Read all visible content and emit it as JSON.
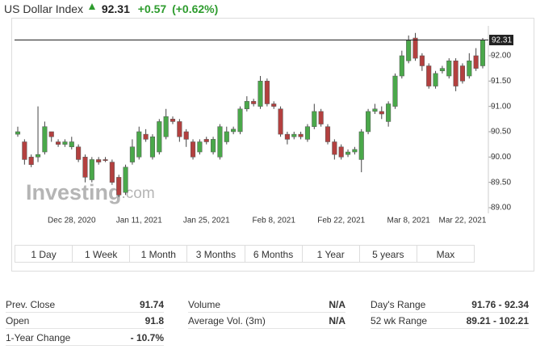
{
  "header": {
    "title": "US Dollar Index",
    "price": "92.31",
    "change": "+0.57",
    "change_pct": "(+0.62%)"
  },
  "chart_data": {
    "type": "candlestick",
    "categories": [
      null,
      null,
      null,
      null,
      null,
      null,
      null,
      null,
      "Dec 28, 2020",
      null,
      null,
      null,
      null,
      null,
      null,
      null,
      null,
      null,
      "Jan 11, 2021",
      null,
      null,
      null,
      null,
      null,
      null,
      null,
      null,
      null,
      "Jan 25, 2021",
      null,
      null,
      null,
      null,
      null,
      null,
      null,
      null,
      null,
      "Feb 8, 2021",
      null,
      null,
      null,
      null,
      null,
      null,
      null,
      null,
      null,
      "Feb 22, 2021",
      null,
      null,
      null,
      null,
      null,
      null,
      null,
      null,
      null,
      "Mar 8, 2021",
      null,
      null,
      null,
      null,
      null,
      null,
      null,
      "Mar 22, 2021",
      null,
      null,
      null
    ],
    "open": [
      90.45,
      90.3,
      90.0,
      90.0,
      90.1,
      90.5,
      90.3,
      90.25,
      90.2,
      90.2,
      90.0,
      89.55,
      89.95,
      89.95,
      89.9,
      89.6,
      89.3,
      89.9,
      90.0,
      90.45,
      90.0,
      90.1,
      90.4,
      90.75,
      90.7,
      90.5,
      90.3,
      90.1,
      90.35,
      90.1,
      90.0,
      90.3,
      90.5,
      90.5,
      90.95,
      91.1,
      91.0,
      91.5,
      91.05,
      90.95,
      90.45,
      90.4,
      90.45,
      90.35,
      90.6,
      90.9,
      90.6,
      90.3,
      90.2,
      90.05,
      90.1,
      89.95,
      90.5,
      90.9,
      90.9,
      90.7,
      91.0,
      91.6,
      91.9,
      92.35,
      92.0,
      91.8,
      91.4,
      91.7,
      91.6,
      91.9,
      91.8,
      91.6,
      92.0,
      91.8
    ],
    "high": [
      90.6,
      90.35,
      90.05,
      91.0,
      90.7,
      90.5,
      90.35,
      90.35,
      90.4,
      90.25,
      90.05,
      90.0,
      90.0,
      90.0,
      89.95,
      89.65,
      89.85,
      90.35,
      90.6,
      90.55,
      90.45,
      90.75,
      90.95,
      90.8,
      90.75,
      90.55,
      90.35,
      90.35,
      90.4,
      90.4,
      90.65,
      90.6,
      90.6,
      91.0,
      91.2,
      91.15,
      91.6,
      91.55,
      91.1,
      91.0,
      90.5,
      90.5,
      90.5,
      90.65,
      91.05,
      90.95,
      90.65,
      90.35,
      90.25,
      90.15,
      90.2,
      90.55,
      90.95,
      91.05,
      91.0,
      91.1,
      91.65,
      92.1,
      92.4,
      92.45,
      92.05,
      91.85,
      91.7,
      91.8,
      91.95,
      91.95,
      91.85,
      92.05,
      92.15,
      92.35
    ],
    "low": [
      90.4,
      89.85,
      89.8,
      89.9,
      90.05,
      90.3,
      90.2,
      90.2,
      90.15,
      89.9,
      89.5,
      89.5,
      89.85,
      89.9,
      89.45,
      89.21,
      89.25,
      89.85,
      89.95,
      90.3,
      89.95,
      90.05,
      90.35,
      90.65,
      90.3,
      90.2,
      89.95,
      90.05,
      90.25,
      90.05,
      89.95,
      90.25,
      90.45,
      90.45,
      90.9,
      91.0,
      90.95,
      91.0,
      90.95,
      90.4,
      90.25,
      90.35,
      90.35,
      90.3,
      90.55,
      90.6,
      90.25,
      89.95,
      89.95,
      90.0,
      90.05,
      89.7,
      90.45,
      90.85,
      90.75,
      90.6,
      90.95,
      91.55,
      91.85,
      91.9,
      91.7,
      91.35,
      91.35,
      91.65,
      91.55,
      91.3,
      91.45,
      91.55,
      91.7,
      91.75
    ],
    "close": [
      90.5,
      89.95,
      89.85,
      90.05,
      90.6,
      90.4,
      90.25,
      90.3,
      90.3,
      89.95,
      89.6,
      89.95,
      89.9,
      89.93,
      89.5,
      89.25,
      89.8,
      90.2,
      90.5,
      90.35,
      90.4,
      90.7,
      90.8,
      90.7,
      90.4,
      90.35,
      90.0,
      90.3,
      90.3,
      90.35,
      90.6,
      90.5,
      90.55,
      90.95,
      91.1,
      91.05,
      91.5,
      91.05,
      91.0,
      90.45,
      90.35,
      90.45,
      90.4,
      90.6,
      90.9,
      90.65,
      90.3,
      90.05,
      90.0,
      90.1,
      90.15,
      90.5,
      90.9,
      90.95,
      90.85,
      91.05,
      91.6,
      92.0,
      92.3,
      91.95,
      91.8,
      91.4,
      91.65,
      91.75,
      91.9,
      91.4,
      91.5,
      91.9,
      91.75,
      92.31
    ],
    "up_color": "#4aa84a",
    "down_color": "#b3403f",
    "ylim": [
      88.92,
      92.51
    ],
    "yticks": [
      {
        "value": 89,
        "label": "89.00"
      },
      {
        "value": 89.5,
        "label": "89.50"
      },
      {
        "value": 90,
        "label": "90.00"
      },
      {
        "value": 90.5,
        "label": "90.50"
      },
      {
        "value": 91,
        "label": "91.00"
      },
      {
        "value": 91.5,
        "label": "91.50"
      },
      {
        "value": 92,
        "label": "92.00"
      }
    ],
    "last_price": 92.31,
    "grid": false,
    "watermark": [
      "Investing",
      ".com"
    ]
  },
  "ranges": [
    "1 Day",
    "1 Week",
    "1 Month",
    "3 Months",
    "6 Months",
    "1 Year",
    "5 years",
    "Max"
  ],
  "stats": [
    [
      [
        "Prev. Close",
        "91.74"
      ],
      [
        "Volume",
        "N/A"
      ],
      [
        "Day's Range",
        "91.76 - 92.34"
      ]
    ],
    [
      [
        "Open",
        "91.8"
      ],
      [
        "Average Vol. (3m)",
        "N/A"
      ],
      [
        "52 wk Range",
        "89.21 - 102.21"
      ]
    ],
    [
      [
        "1-Year Change",
        "- 10.7%"
      ],
      null,
      null
    ]
  ]
}
